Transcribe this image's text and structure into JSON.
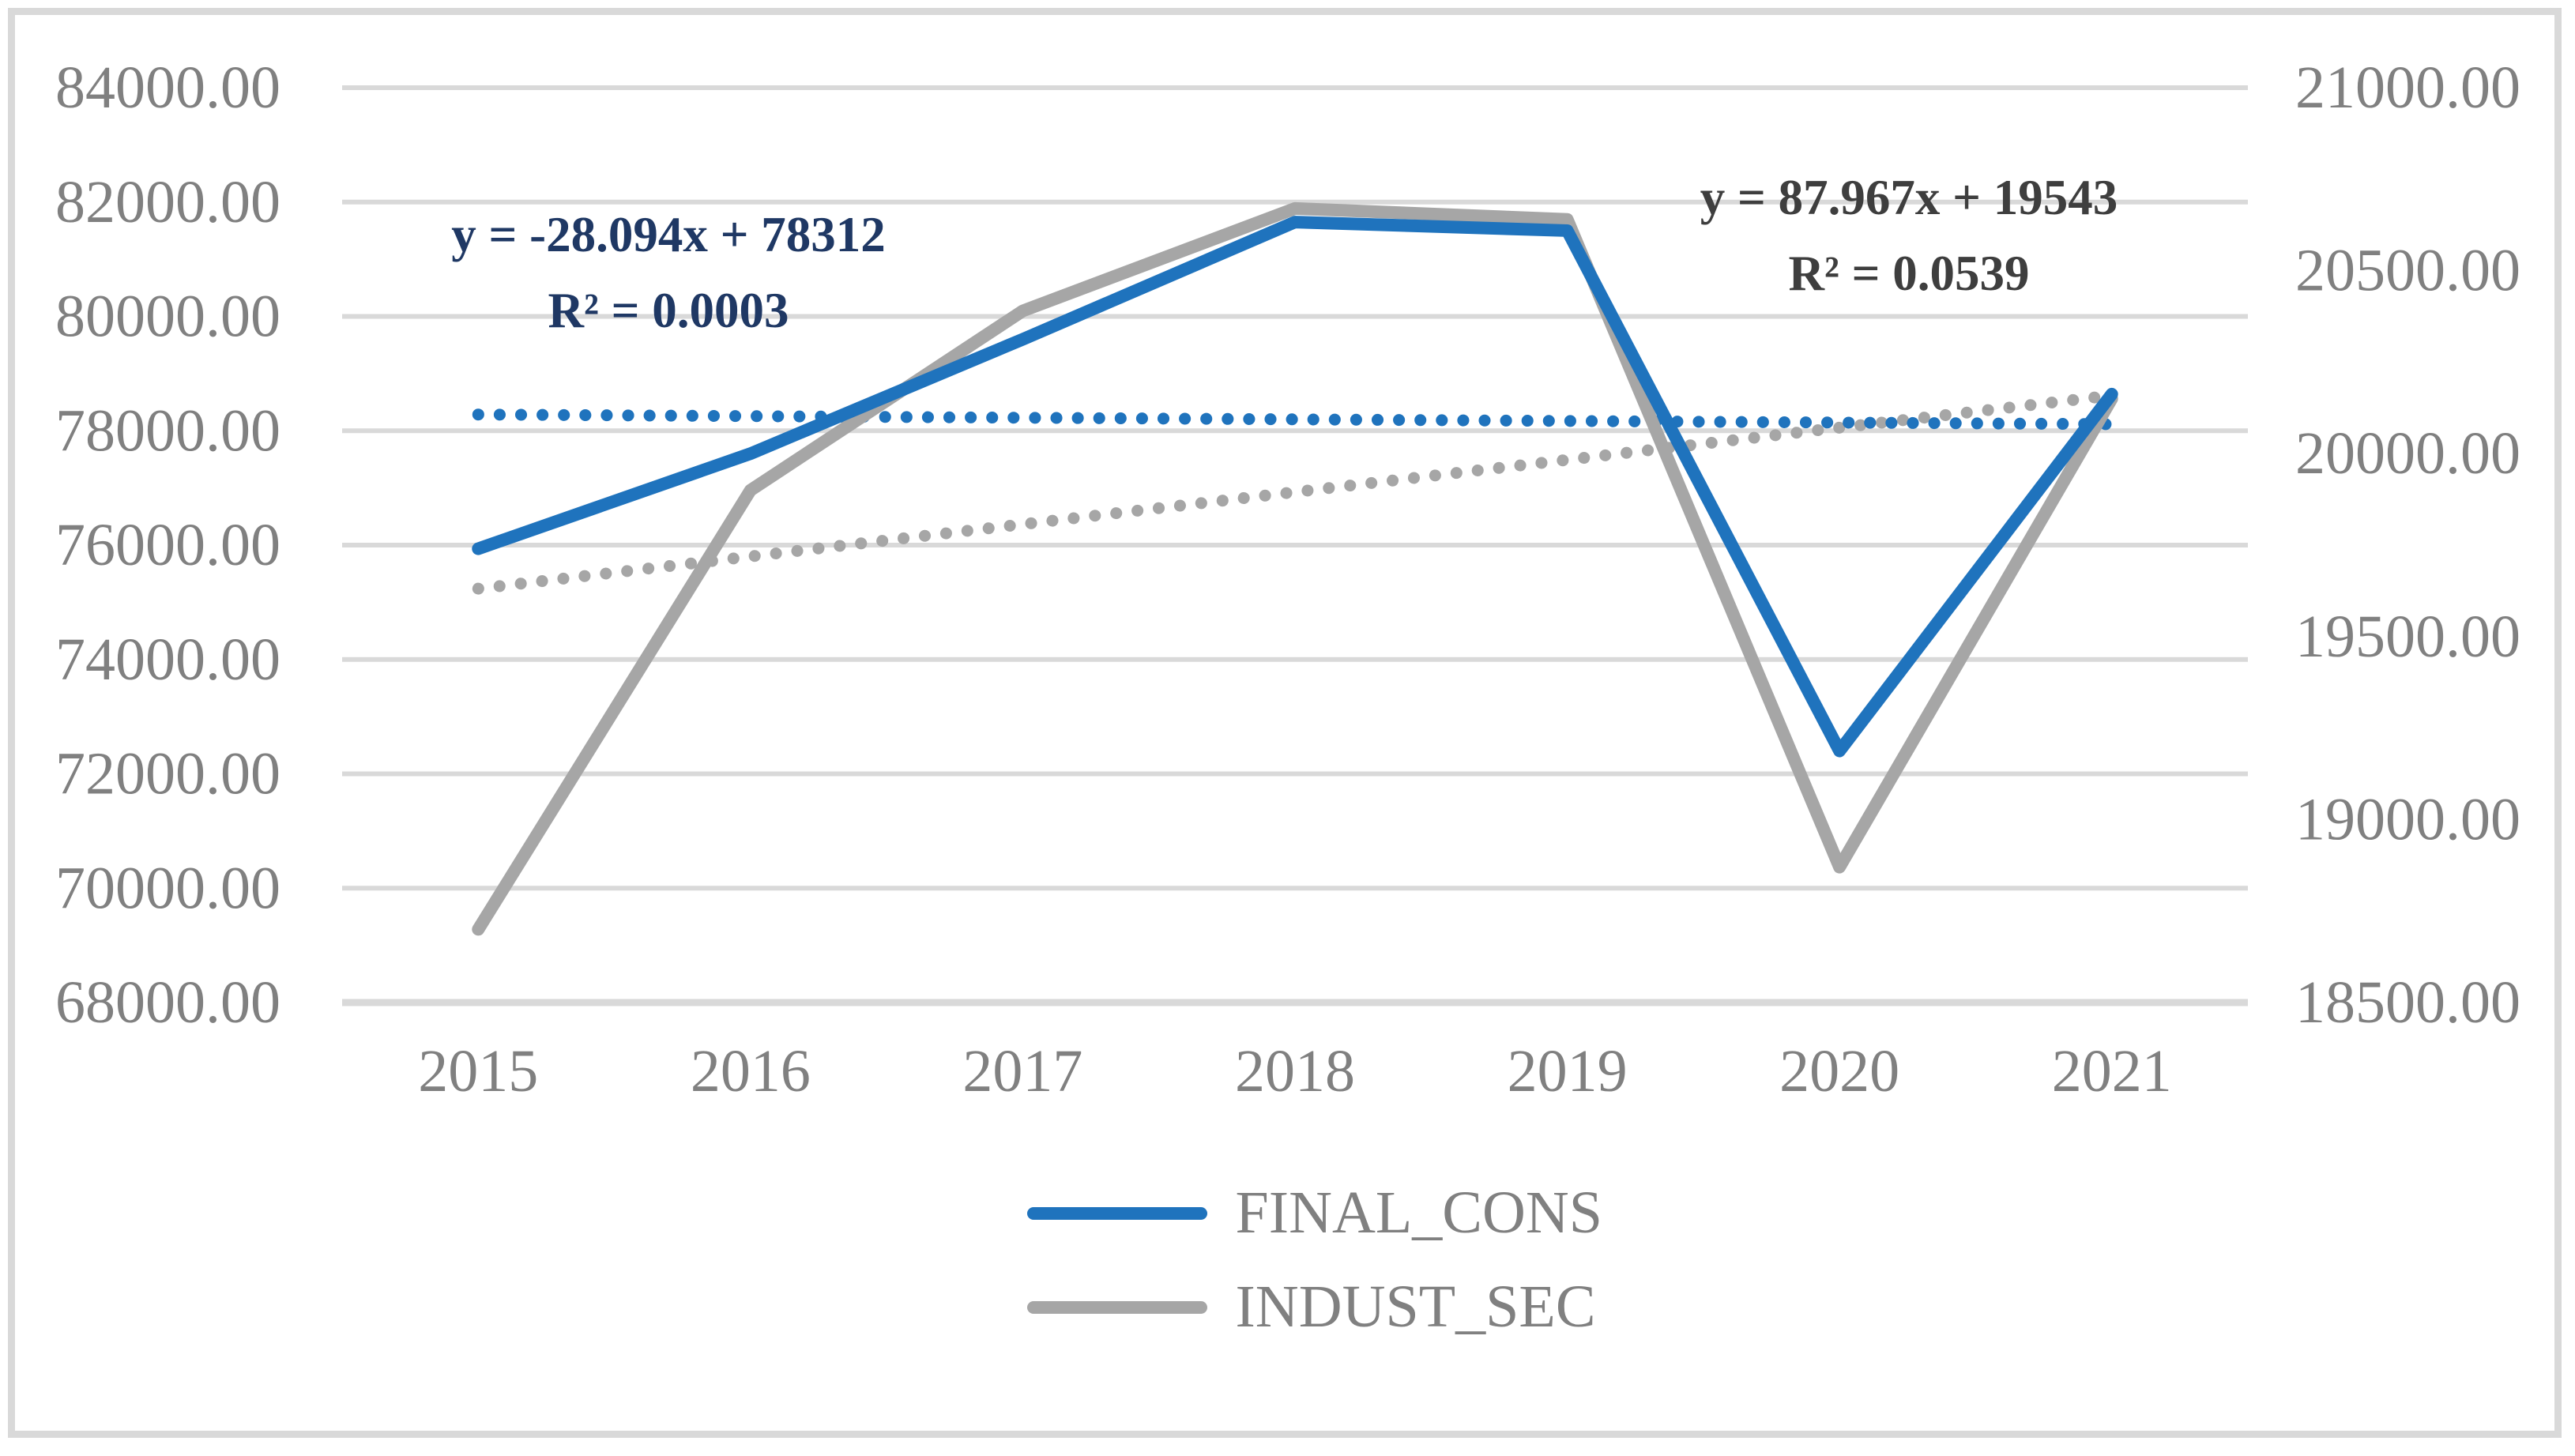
{
  "colors": {
    "final_cons_blue": "#1f73bd",
    "indust_sec_gray": "#a6a6a6",
    "gridline": "#d9d9d9",
    "frame_border": "#d9d9d9",
    "axis_text": "#808080",
    "equation_blue_text": "#1f3864",
    "equation_gray_text": "#3e3e3e",
    "background": "#ffffff"
  },
  "chart_data": {
    "type": "line",
    "title": "",
    "categories": [
      "2015",
      "2016",
      "2017",
      "2018",
      "2019",
      "2020",
      "2021"
    ],
    "series": [
      {
        "name": "FINAL_CONS",
        "axis": "left",
        "color": "#1f73bd",
        "values": [
          75937,
          77600,
          79600,
          81650,
          81500,
          72400,
          78640
        ]
      },
      {
        "name": "INDUST_SEC",
        "axis": "right",
        "color": "#a6a6a6",
        "values": [
          18700,
          19900,
          20390,
          20670,
          20640,
          18870,
          20150
        ]
      }
    ],
    "trendlines": [
      {
        "series": "FINAL_CONS",
        "axis": "left",
        "color": "#1f73bd",
        "equation": "y = -28.094x + 78312",
        "r_squared": "R² = 0.0003",
        "start_value": 78284,
        "end_value": 78115
      },
      {
        "series": "INDUST_SEC",
        "axis": "right",
        "color": "#a6a6a6",
        "equation": "y = 87.967x + 19543",
        "r_squared": "R² = 0.0539",
        "start_value": 19631,
        "end_value": 20159
      }
    ],
    "left_axis": {
      "min": 68000,
      "max": 84000,
      "step": 2000,
      "labels": [
        "84000.00",
        "82000.00",
        "80000.00",
        "78000.00",
        "76000.00",
        "74000.00",
        "72000.00",
        "70000.00",
        "68000.00"
      ]
    },
    "right_axis": {
      "min": 18500,
      "max": 21000,
      "step": 500,
      "labels": [
        "21000.00",
        "20500.00",
        "20000.00",
        "19500.00",
        "19000.00",
        "18500.00"
      ]
    },
    "grid": true,
    "legend_position": "bottom"
  },
  "annotations": {
    "blue_equation_line1": "y = -28.094x + 78312",
    "blue_equation_line2": "R² = 0.0003",
    "gray_equation_line1": "y = 87.967x + 19543",
    "gray_equation_line2": "R² = 0.0539"
  },
  "legend": {
    "items": [
      {
        "label": "FINAL_CONS",
        "color": "#1f73bd"
      },
      {
        "label": "INDUST_SEC",
        "color": "#a6a6a6"
      }
    ]
  }
}
